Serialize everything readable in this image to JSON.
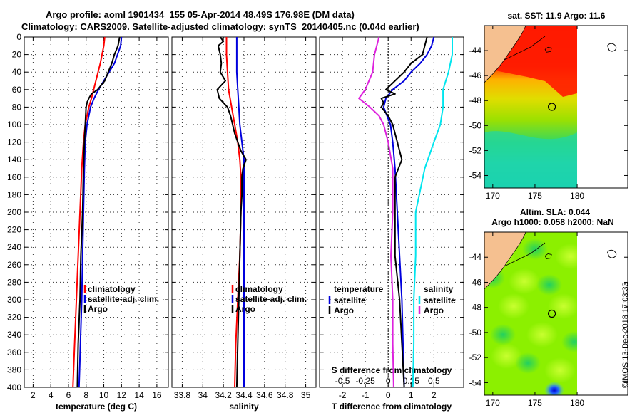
{
  "header": {
    "title_line1": "Argo profile: aoml 1901434_155 05-Apr-2014 48.49S 176.98E (DM data)",
    "title_line2": "Climatology: CARS2009. Satellite-adjusted climatology: synTS_20140405.nc (0.04d earlier)"
  },
  "colors": {
    "climatology": "#ff0000",
    "satellite": "#0000dd",
    "argo": "#000000",
    "sal_satellite": "#00e5ee",
    "sal_argo": "#dd22dd"
  },
  "chart_data": [
    {
      "type": "line",
      "name": "temperature",
      "xlabel": "temperature (deg C)",
      "ylabel": "",
      "xlim": [
        1,
        17.3
      ],
      "ylim": [
        400,
        0
      ],
      "xticks": [
        2,
        4,
        6,
        8,
        10,
        12,
        14,
        16
      ],
      "yticks": [
        0,
        20,
        40,
        60,
        80,
        100,
        120,
        140,
        160,
        180,
        200,
        220,
        240,
        260,
        280,
        300,
        320,
        340,
        360,
        380,
        400
      ],
      "grid": true,
      "legend": [
        "climatology",
        "satellite-adj. clim.",
        "Argo"
      ],
      "series": [
        {
          "name": "climatology",
          "color": "#ff0000",
          "depth": [
            0,
            10,
            30,
            50,
            70,
            80,
            100,
            120,
            150,
            200,
            250,
            300,
            350,
            400
          ],
          "values": [
            10.1,
            10.0,
            9.6,
            9.1,
            8.6,
            8.3,
            7.9,
            7.7,
            7.5,
            7.3,
            7.1,
            6.9,
            6.7,
            6.5
          ]
        },
        {
          "name": "satellite-adj. clim.",
          "color": "#0000dd",
          "depth": [
            0,
            10,
            30,
            50,
            60,
            70,
            80,
            100,
            120,
            150,
            200,
            250,
            300,
            350,
            400
          ],
          "values": [
            12.0,
            11.9,
            11.2,
            10.0,
            9.4,
            8.9,
            8.5,
            8.1,
            7.9,
            7.8,
            7.7,
            7.6,
            7.5,
            7.35,
            7.2
          ]
        },
        {
          "name": "Argo",
          "color": "#000000",
          "depth": [
            0,
            10,
            20,
            30,
            40,
            50,
            60,
            65,
            70,
            75,
            80,
            100,
            120,
            150,
            200,
            250,
            300,
            350,
            400
          ],
          "values": [
            11.8,
            11.6,
            11.2,
            10.9,
            10.5,
            10.1,
            9.3,
            8.6,
            8.3,
            8.1,
            8.0,
            7.9,
            7.8,
            7.7,
            7.6,
            7.4,
            7.3,
            7.1,
            7.0
          ]
        }
      ]
    },
    {
      "type": "line",
      "name": "salinity",
      "xlabel": "salinity",
      "ylabel": "",
      "xlim": [
        33.7,
        35.1
      ],
      "ylim": [
        400,
        0
      ],
      "xticks": [
        33.8,
        34,
        34.2,
        34.4,
        34.6,
        34.8,
        35
      ],
      "xticklabels": [
        "33.8",
        "34",
        "34.2",
        "34.4",
        "34.6",
        "34.8",
        "35"
      ],
      "grid": true,
      "legend": [
        "climatology",
        "satellite-adj. clim.",
        "Argo"
      ],
      "series": [
        {
          "name": "climatology",
          "color": "#ff0000",
          "depth": [
            0,
            20,
            40,
            60,
            80,
            100,
            120,
            140,
            160,
            200,
            250,
            300,
            350,
            400
          ],
          "values": [
            34.23,
            34.23,
            34.24,
            34.25,
            34.28,
            34.31,
            34.34,
            34.36,
            34.37,
            34.37,
            34.36,
            34.34,
            34.32,
            34.31
          ]
        },
        {
          "name": "satellite-adj. clim.",
          "color": "#0000dd",
          "depth": [
            0,
            20,
            40,
            60,
            80,
            100,
            120,
            140,
            160,
            200,
            250,
            300,
            350,
            400
          ],
          "values": [
            34.33,
            34.33,
            34.33,
            34.34,
            34.35,
            34.36,
            34.38,
            34.4,
            34.4,
            34.4,
            34.4,
            34.4,
            34.4,
            34.4
          ]
        },
        {
          "name": "Argo",
          "color": "#000000",
          "depth": [
            0,
            5,
            10,
            20,
            30,
            40,
            50,
            60,
            70,
            80,
            90,
            100,
            110,
            120,
            130,
            140,
            150,
            160,
            180,
            200,
            250,
            300,
            350,
            400
          ],
          "values": [
            34.17,
            34.2,
            34.15,
            34.17,
            34.18,
            34.17,
            34.22,
            34.14,
            34.16,
            34.24,
            34.27,
            34.29,
            34.31,
            34.34,
            34.37,
            34.42,
            34.39,
            34.38,
            34.38,
            34.37,
            34.36,
            34.35,
            34.34,
            34.33
          ]
        }
      ]
    },
    {
      "type": "line",
      "name": "difference",
      "xlabel": "T difference from climatology",
      "top_label": "S difference from climatology",
      "xlim": [
        -3,
        3.3
      ],
      "ylim": [
        400,
        0
      ],
      "xticks": [
        -2,
        -1,
        0,
        1,
        2
      ],
      "sticks": [
        "-0.5",
        "-0.25",
        "0",
        "0.25",
        "0.5"
      ],
      "grid": true,
      "legend_left": {
        "title": "temperature",
        "items": [
          "satellite",
          "Argo"
        ]
      },
      "legend_right": {
        "title": "salinity",
        "items": [
          "satellite",
          "Argo"
        ]
      },
      "series": [
        {
          "name": "T satellite",
          "color": "#0000dd",
          "depth": [
            0,
            10,
            20,
            30,
            40,
            50,
            60,
            70,
            80,
            100,
            120,
            150,
            200,
            250,
            300,
            350,
            400
          ],
          "values": [
            2.0,
            1.9,
            1.7,
            1.4,
            1.0,
            0.7,
            0.2,
            -0.1,
            -0.2,
            0.1,
            0.2,
            0.3,
            0.4,
            0.5,
            0.6,
            0.65,
            0.7
          ]
        },
        {
          "name": "T Argo",
          "color": "#000000",
          "depth": [
            0,
            10,
            20,
            30,
            40,
            50,
            60,
            65,
            70,
            75,
            80,
            90,
            100,
            120,
            140,
            160,
            200,
            250,
            300,
            350,
            400
          ],
          "values": [
            1.7,
            1.6,
            1.5,
            1.0,
            0.7,
            0.3,
            -0.1,
            0.3,
            -0.3,
            -0.2,
            -0.3,
            0.0,
            0.2,
            0.4,
            0.6,
            0.3,
            0.3,
            0.3,
            0.5,
            0.6,
            0.7
          ]
        },
        {
          "name": "S satellite",
          "color": "#00e5ee",
          "depth": [
            0,
            20,
            40,
            60,
            80,
            100,
            120,
            150,
            200,
            250,
            300,
            350,
            400
          ],
          "values": [
            0.7,
            0.7,
            0.66,
            0.6,
            0.6,
            0.57,
            0.5,
            0.4,
            0.3,
            0.3,
            0.28,
            0.28,
            0.27
          ]
        },
        {
          "name": "S Argo",
          "color": "#dd22dd",
          "depth": [
            0,
            20,
            40,
            60,
            70,
            80,
            90,
            100,
            120,
            150,
            200,
            250,
            300,
            350,
            400
          ],
          "values": [
            -0.1,
            -0.15,
            -0.17,
            -0.25,
            -0.32,
            -0.2,
            -0.1,
            -0.05,
            0.0,
            0.05,
            0.05,
            0.03,
            0.05,
            0.05,
            0.06
          ]
        }
      ]
    },
    {
      "type": "heatmap",
      "name": "sst-map",
      "title": "sat. SST: 11.9 Argo: 11.6",
      "xlim": [
        169,
        186
      ],
      "ylim": [
        -55,
        -42
      ],
      "xticks": [
        170,
        175,
        180
      ],
      "yticks": [
        -44,
        -46,
        -48,
        -50,
        -52,
        -54
      ],
      "argo_lon": 177,
      "argo_lat": -48.5
    },
    {
      "type": "heatmap",
      "name": "sla-map",
      "title_line1": "Altim. SLA: 0.044",
      "title_line2": "Argo h1000: 0.058 h2000: NaN",
      "xlim": [
        169,
        186
      ],
      "ylim": [
        -55,
        -42
      ],
      "xticks": [
        170,
        175,
        180
      ],
      "yticks": [
        -44,
        -46,
        -48,
        -50,
        -52,
        -54
      ],
      "argo_lon": 177,
      "argo_lat": -48.5
    }
  ],
  "watermark": "©IMOS 13-Dec-2018 17:03:33"
}
